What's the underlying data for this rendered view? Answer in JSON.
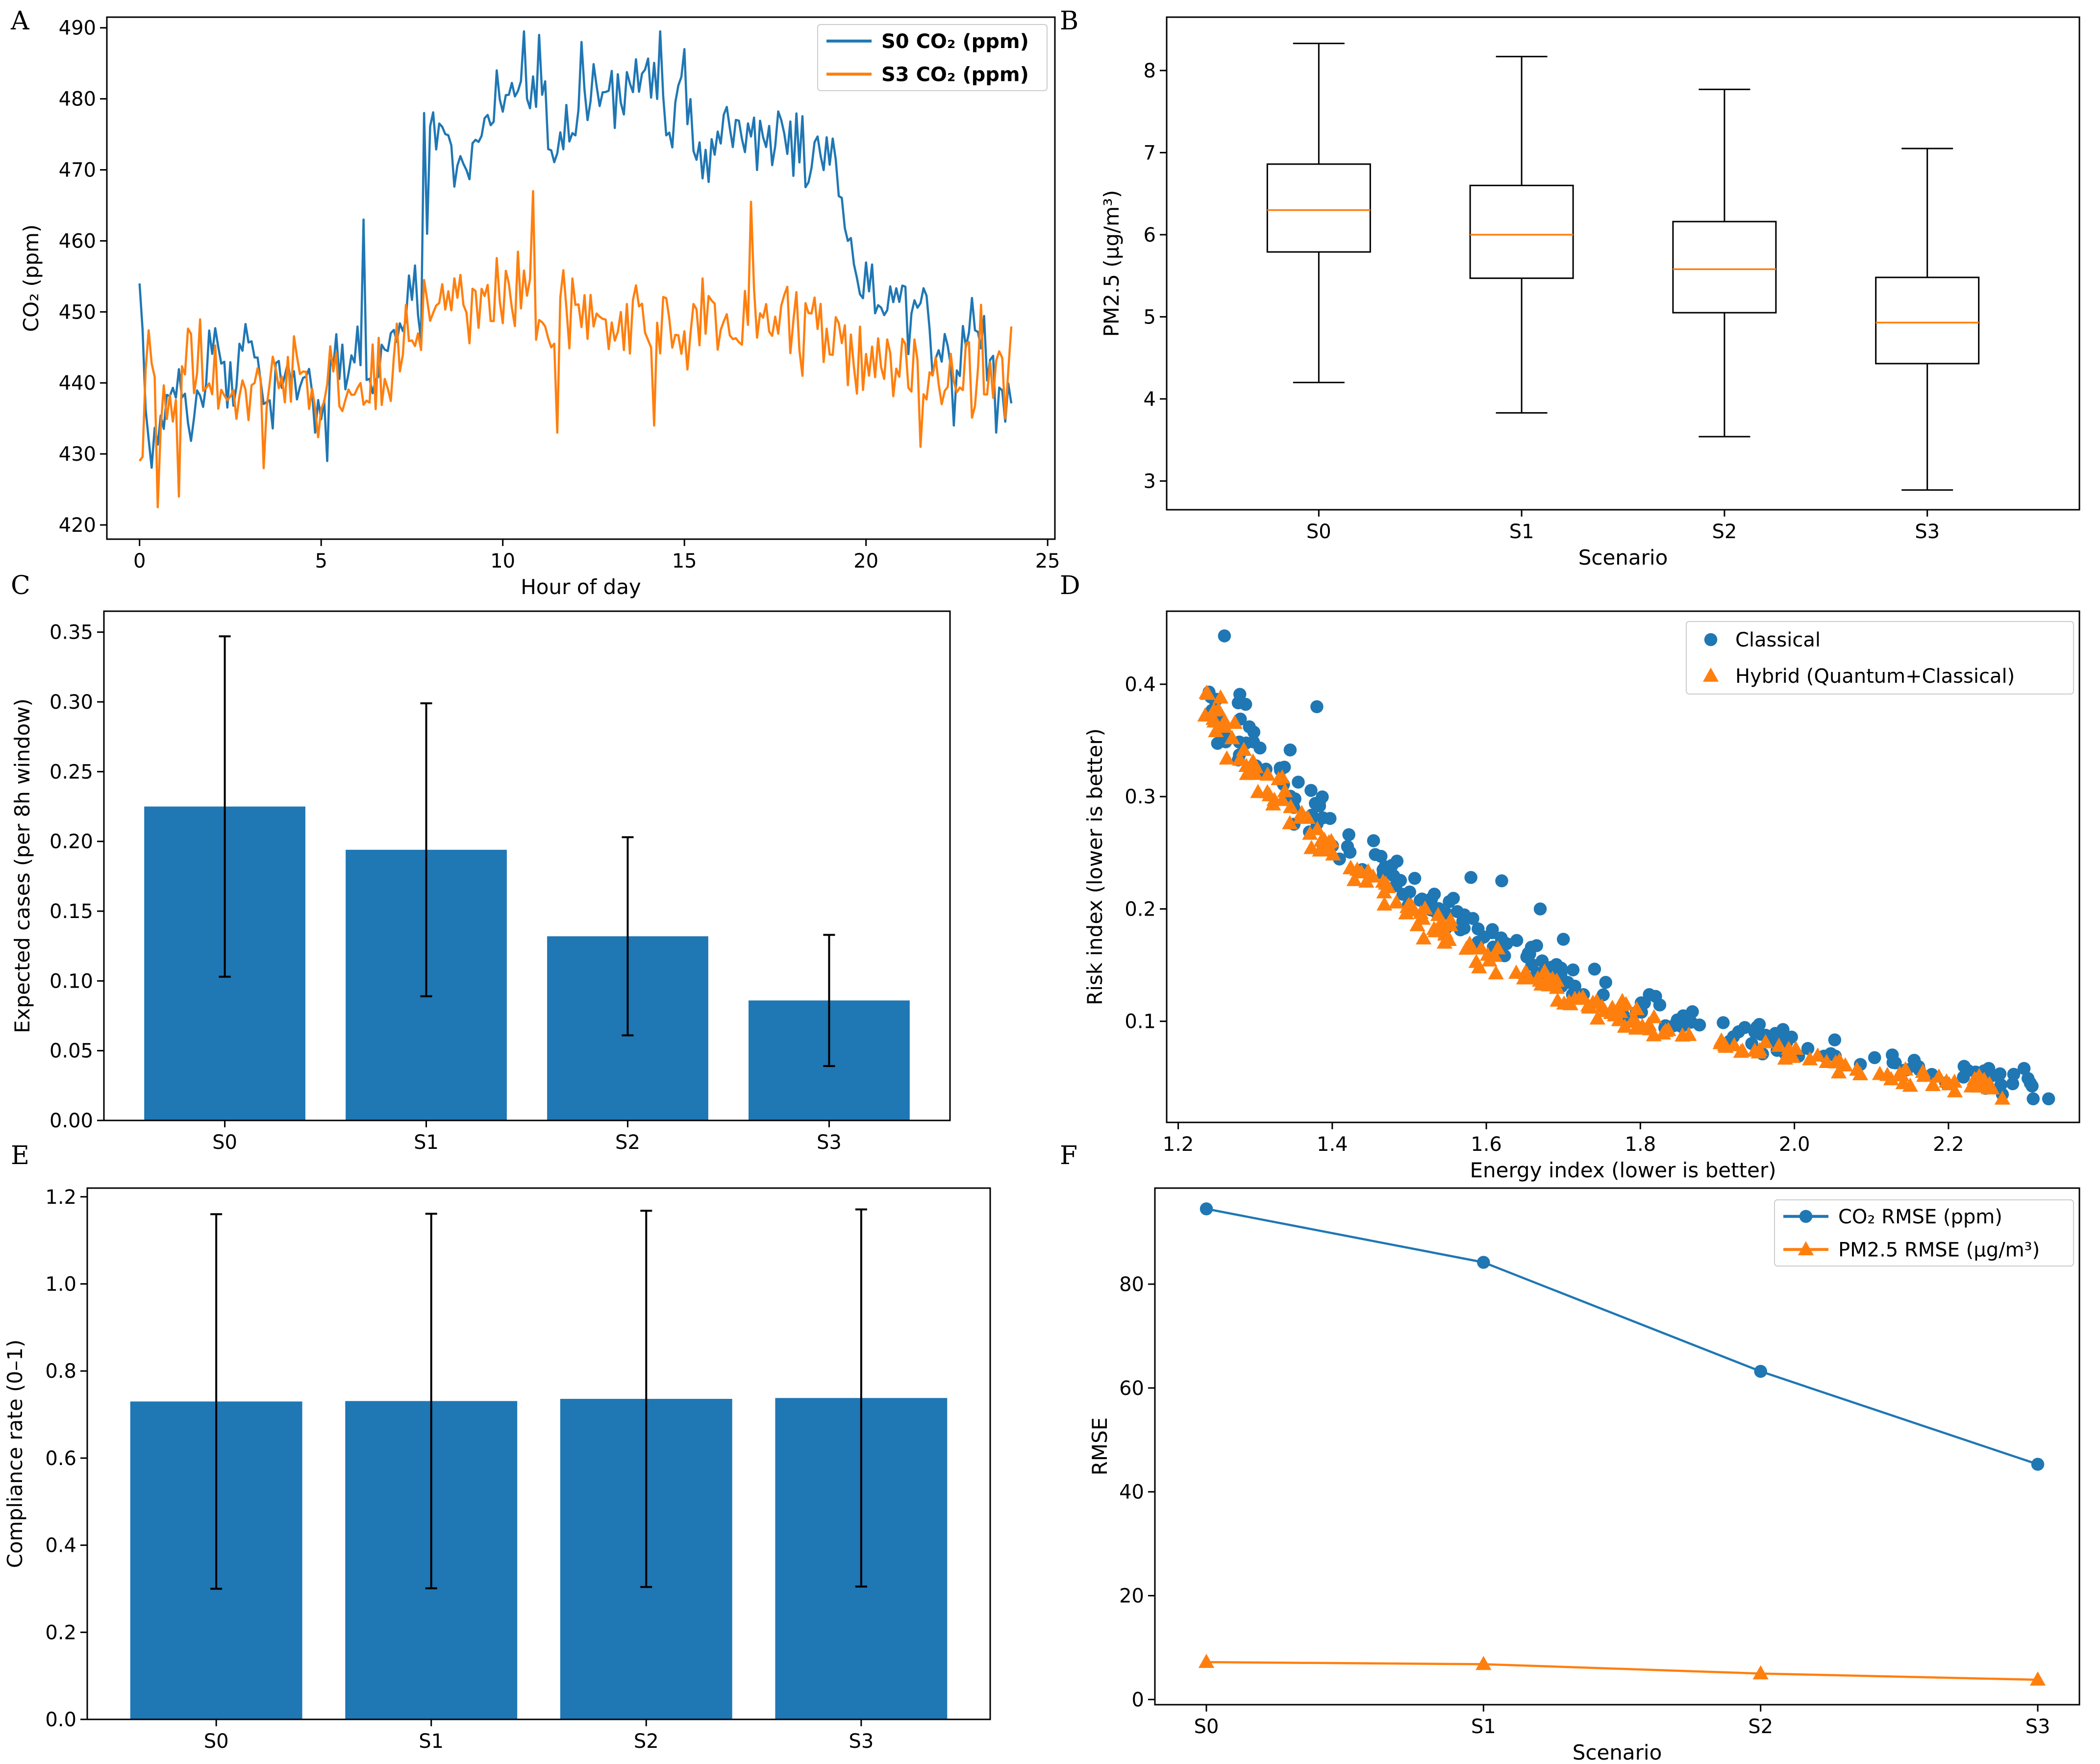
{
  "colors": {
    "blue": "#1f77b4",
    "orange": "#ff7f0e",
    "black": "#000000"
  },
  "chart_data": [
    {
      "panel": "A",
      "type": "line",
      "xlabel": "Hour of day",
      "ylabel": "CO₂ (ppm)",
      "xlim": [
        -0.9,
        25.2
      ],
      "ylim": [
        418,
        491.5
      ],
      "xticks": [
        0,
        5,
        10,
        15,
        20,
        25
      ],
      "yticks": [
        420,
        430,
        440,
        450,
        460,
        470,
        480,
        490
      ],
      "legend": "top-right",
      "series": [
        {
          "name": "S0 CO₂ (ppm)",
          "color": "#1f77b4",
          "anchors": [
            [
              0,
              454
            ],
            [
              0.3,
              430
            ],
            [
              1,
              440
            ],
            [
              1.5,
              436
            ],
            [
              2,
              446
            ],
            [
              2.5,
              440
            ],
            [
              3,
              446
            ],
            [
              3.5,
              437
            ],
            [
              4,
              442
            ],
            [
              4.5,
              440
            ],
            [
              5,
              439
            ],
            [
              5.5,
              446
            ],
            [
              6,
              442
            ],
            [
              6.5,
              440
            ],
            [
              7,
              446
            ],
            [
              7.5,
              454
            ],
            [
              7.8,
              450
            ],
            [
              8,
              476
            ],
            [
              8.5,
              472
            ],
            [
              9,
              470
            ],
            [
              9.5,
              476
            ],
            [
              10,
              478
            ],
            [
              10.5,
              484
            ],
            [
              11,
              480
            ],
            [
              11.5,
              475
            ],
            [
              12,
              477
            ],
            [
              12.5,
              482
            ],
            [
              13,
              478
            ],
            [
              13.5,
              480
            ],
            [
              14,
              482
            ],
            [
              14.5,
              478
            ],
            [
              15,
              480
            ],
            [
              15.5,
              470
            ],
            [
              16,
              474
            ],
            [
              16.5,
              476
            ],
            [
              17,
              472
            ],
            [
              17.5,
              476
            ],
            [
              18,
              474
            ],
            [
              18.5,
              470
            ],
            [
              19,
              472
            ],
            [
              19.5,
              460
            ],
            [
              20,
              452
            ],
            [
              20.5,
              450
            ],
            [
              21,
              449
            ],
            [
              21.5,
              450
            ],
            [
              22,
              444
            ],
            [
              22.5,
              442
            ],
            [
              23,
              447
            ],
            [
              23.5,
              440
            ],
            [
              24,
              437
            ]
          ],
          "amplitude": 4.2,
          "spikes": [
            [
              10.6,
              489.5
            ],
            [
              11,
              489
            ],
            [
              14.3,
              489.5
            ],
            [
              15,
              487
            ],
            [
              12.2,
              488
            ],
            [
              9.8,
              484
            ],
            [
              6.2,
              463
            ],
            [
              4.8,
              433
            ],
            [
              5.2,
              429
            ],
            [
              23.6,
              433
            ],
            [
              22.4,
              434
            ],
            [
              7.8,
              478
            ]
          ]
        },
        {
          "name": "S3 CO₂ (ppm)",
          "color": "#ff7f0e",
          "anchors": [
            [
              0,
              429
            ],
            [
              0.2,
              447
            ],
            [
              0.5,
              440
            ],
            [
              1,
              437
            ],
            [
              1.5,
              443
            ],
            [
              2,
              441
            ],
            [
              2.5,
              440
            ],
            [
              3,
              439
            ],
            [
              3.5,
              439
            ],
            [
              4,
              441
            ],
            [
              4.5,
              440
            ],
            [
              5,
              438
            ],
            [
              5.5,
              440
            ],
            [
              6,
              438
            ],
            [
              6.5,
              441
            ],
            [
              7,
              443
            ],
            [
              7.5,
              447
            ],
            [
              8,
              449
            ],
            [
              8.5,
              450
            ],
            [
              9,
              451
            ],
            [
              9.5,
              451
            ],
            [
              10,
              452
            ],
            [
              10.5,
              452
            ],
            [
              11,
              451
            ],
            [
              11.5,
              450
            ],
            [
              12,
              449
            ],
            [
              12.5,
              448
            ],
            [
              13,
              448
            ],
            [
              13.5,
              448
            ],
            [
              14,
              447
            ],
            [
              14.5,
              447
            ],
            [
              15,
              448
            ],
            [
              15.5,
              449
            ],
            [
              16,
              449
            ],
            [
              16.5,
              449
            ],
            [
              17,
              450
            ],
            [
              17.5,
              449
            ],
            [
              18,
              448
            ],
            [
              18.5,
              446
            ],
            [
              19,
              446
            ],
            [
              19.5,
              445
            ],
            [
              20,
              444
            ],
            [
              20.5,
              443
            ],
            [
              21,
              442
            ],
            [
              21.5,
              441
            ],
            [
              22,
              441
            ],
            [
              22.5,
              440
            ],
            [
              23,
              439
            ],
            [
              23.5,
              441
            ],
            [
              24,
              444
            ]
          ],
          "amplitude": 5.0,
          "spikes": [
            [
              0.5,
              422.5
            ],
            [
              1.1,
              424
            ],
            [
              10.8,
              467
            ],
            [
              11.5,
              433
            ],
            [
              16.8,
              465.5
            ],
            [
              14.2,
              434
            ],
            [
              21.5,
              431
            ],
            [
              23.2,
              451
            ],
            [
              23.8,
              435
            ],
            [
              3.4,
              428
            ]
          ]
        }
      ]
    },
    {
      "panel": "B",
      "type": "box",
      "xlabel": "Scenario",
      "ylabel": "PM2.5 (µg/m³)",
      "ylim": [
        2.65,
        8.65
      ],
      "yticks": [
        3,
        4,
        5,
        6,
        7,
        8
      ],
      "categories": [
        "S0",
        "S1",
        "S2",
        "S3"
      ],
      "boxes": [
        {
          "whislo": 4.2,
          "q1": 5.79,
          "med": 6.3,
          "q3": 6.86,
          "whishi": 8.33
        },
        {
          "whislo": 3.83,
          "q1": 5.47,
          "med": 6.0,
          "q3": 6.6,
          "whishi": 8.17
        },
        {
          "whislo": 3.54,
          "q1": 5.05,
          "med": 5.58,
          "q3": 6.16,
          "whishi": 7.77
        },
        {
          "whislo": 2.89,
          "q1": 4.43,
          "med": 4.93,
          "q3": 5.48,
          "whishi": 7.05
        }
      ]
    },
    {
      "panel": "C",
      "type": "bar",
      "xlabel": "",
      "ylabel": "Expected cases (per 8h window)",
      "ylim": [
        0,
        0.365
      ],
      "yticks": [
        0.0,
        0.05,
        0.1,
        0.15,
        0.2,
        0.25,
        0.3,
        0.35
      ],
      "ytick_labels": [
        "0.00",
        "0.05",
        "0.10",
        "0.15",
        "0.20",
        "0.25",
        "0.30",
        "0.35"
      ],
      "categories": [
        "S0",
        "S1",
        "S2",
        "S3"
      ],
      "values": [
        0.225,
        0.194,
        0.132,
        0.086
      ],
      "errors": [
        0.122,
        0.105,
        0.071,
        0.047
      ],
      "color": "#1f77b4"
    },
    {
      "panel": "D",
      "type": "scatter",
      "xlabel": "Energy index (lower is better)",
      "ylabel": "Risk index (lower is better)",
      "xlim": [
        1.185,
        2.37
      ],
      "ylim": [
        0.01,
        0.465
      ],
      "xticks": [
        1.2,
        1.4,
        1.6,
        1.8,
        2.0,
        2.2
      ],
      "xtick_labels": [
        "1.2",
        "1.4",
        "1.6",
        "1.8",
        "2.0",
        "2.2"
      ],
      "yticks": [
        0.1,
        0.2,
        0.3,
        0.4
      ],
      "ytick_labels": [
        "0.1",
        "0.2",
        "0.3",
        "0.4"
      ],
      "legend": "top-right",
      "series": [
        {
          "name": "Classical",
          "marker": "circle",
          "color": "#1f77b4",
          "n": 200,
          "xrange": [
            1.24,
            2.33
          ],
          "curve": {
            "a": 0.375,
            "k": 2.45,
            "x0": 1.24,
            "c": 0.02
          },
          "spread": 0.025,
          "extra": [
            [
              1.26,
              0.443
            ],
            [
              1.24,
              0.393
            ],
            [
              1.28,
              0.391
            ],
            [
              1.38,
              0.38
            ],
            [
              1.58,
              0.228
            ],
            [
              1.62,
              0.225
            ],
            [
              1.67,
              0.2
            ],
            [
              1.7,
              0.173
            ],
            [
              2.31,
              0.031
            ],
            [
              2.33,
              0.031
            ],
            [
              2.27,
              0.035
            ]
          ]
        },
        {
          "name": "Hybrid (Quantum+Classical)",
          "marker": "triangle",
          "color": "#ff7f0e",
          "n": 200,
          "xrange": [
            1.235,
            2.27
          ],
          "curve": {
            "a": 0.36,
            "k": 2.6,
            "x0": 1.235,
            "c": 0.018
          },
          "spread": 0.018,
          "extra": [
            [
              1.235,
              0.372
            ],
            [
              1.255,
              0.388
            ],
            [
              1.26,
              0.362
            ],
            [
              1.3,
              0.32
            ],
            [
              2.27,
              0.031
            ]
          ]
        }
      ]
    },
    {
      "panel": "E",
      "type": "bar",
      "xlabel": "",
      "ylabel": "Compliance rate (0–1)",
      "ylim": [
        0,
        1.22
      ],
      "yticks": [
        0.0,
        0.2,
        0.4,
        0.6,
        0.8,
        1.0,
        1.2
      ],
      "ytick_labels": [
        "0.0",
        "0.2",
        "0.4",
        "0.6",
        "0.8",
        "1.0",
        "1.2"
      ],
      "categories": [
        "S0",
        "S1",
        "S2",
        "S3"
      ],
      "values": [
        0.73,
        0.731,
        0.736,
        0.738
      ],
      "errors": [
        0.43,
        0.43,
        0.432,
        0.433
      ],
      "color": "#1f77b4"
    },
    {
      "panel": "F",
      "type": "line",
      "xlabel": "Scenario",
      "ylabel": "RMSE",
      "ylim": [
        -1,
        98.5
      ],
      "yticks": [
        0,
        20,
        40,
        60,
        80
      ],
      "categories": [
        "S0",
        "S1",
        "S2",
        "S3"
      ],
      "legend": "top-right",
      "series": [
        {
          "name": "CO₂ RMSE (ppm)",
          "marker": "circle",
          "color": "#1f77b4",
          "values": [
            94.5,
            84.2,
            63.2,
            45.3
          ]
        },
        {
          "name": "PM2.5 RMSE (µg/m³)",
          "marker": "triangle",
          "color": "#ff7f0e",
          "values": [
            7.2,
            6.8,
            5.0,
            3.8
          ]
        }
      ]
    }
  ]
}
